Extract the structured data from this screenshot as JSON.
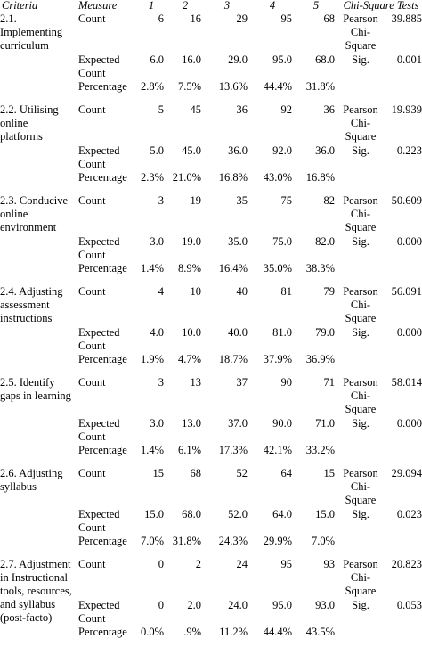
{
  "header": {
    "criteria": "Criteria",
    "measure": "Measure",
    "levels": [
      "1",
      "2",
      "3",
      "4",
      "5"
    ],
    "chi_square": "Chi-Square Tests"
  },
  "groups": [
    {
      "criteria": "2.1. Implementing curriculum",
      "rows": [
        {
          "measure": "Count",
          "values": [
            "6",
            "16",
            "29",
            "95",
            "68"
          ],
          "test_label": "Pearson Chi-Square",
          "test_value": "39.885"
        },
        {
          "measure": "Expected Count",
          "values": [
            "6.0",
            "16.0",
            "29.0",
            "95.0",
            "68.0"
          ],
          "test_label": "Sig.",
          "test_value": "0.001"
        },
        {
          "measure": "Percentage",
          "values": [
            "2.8%",
            "7.5%",
            "13.6%",
            "44.4%",
            "31.8%"
          ]
        }
      ]
    },
    {
      "criteria": "2.2. Utilising online platforms",
      "rows": [
        {
          "measure": "Count",
          "values": [
            "5",
            "45",
            "36",
            "92",
            "36"
          ],
          "test_label": "Pearson Chi-Square",
          "test_value": "19.939"
        },
        {
          "measure": "Expected Count",
          "values": [
            "5.0",
            "45.0",
            "36.0",
            "92.0",
            "36.0"
          ],
          "test_label": "Sig.",
          "test_value": "0.223"
        },
        {
          "measure": "Percentage",
          "values": [
            "2.3%",
            "21.0%",
            "16.8%",
            "43.0%",
            "16.8%"
          ]
        }
      ]
    },
    {
      "criteria": "2.3. Conducive online environment",
      "rows": [
        {
          "measure": "Count",
          "values": [
            "3",
            "19",
            "35",
            "75",
            "82"
          ],
          "test_label": "Pearson Chi-Square",
          "test_value": "50.609"
        },
        {
          "measure": "Expected Count",
          "values": [
            "3.0",
            "19.0",
            "35.0",
            "75.0",
            "82.0"
          ],
          "test_label": "Sig.",
          "test_value": "0.000"
        },
        {
          "measure": "Percentage",
          "values": [
            "1.4%",
            "8.9%",
            "16.4%",
            "35.0%",
            "38.3%"
          ]
        }
      ]
    },
    {
      "criteria": "2.4. Adjusting assessment instructions",
      "rows": [
        {
          "measure": "Count",
          "values": [
            "4",
            "10",
            "40",
            "81",
            "79"
          ],
          "test_label": "Pearson Chi-Square",
          "test_value": "56.091"
        },
        {
          "measure": "Expected Count",
          "values": [
            "4.0",
            "10.0",
            "40.0",
            "81.0",
            "79.0"
          ],
          "test_label": "Sig.",
          "test_value": "0.000"
        },
        {
          "measure": "Percentage",
          "values": [
            "1.9%",
            "4.7%",
            "18.7%",
            "37.9%",
            "36.9%"
          ]
        }
      ]
    },
    {
      "criteria": "2.5. Identify gaps in learning",
      "rows": [
        {
          "measure": "Count",
          "values": [
            "3",
            "13",
            "37",
            "90",
            "71"
          ],
          "test_label": "Pearson Chi-Square",
          "test_value": "58.014"
        },
        {
          "measure": "Expected Count",
          "values": [
            "3.0",
            "13.0",
            "37.0",
            "90.0",
            "71.0"
          ],
          "test_label": "Sig.",
          "test_value": "0.000"
        },
        {
          "measure": "Percentage",
          "values": [
            "1.4%",
            "6.1%",
            "17.3%",
            "42.1%",
            "33.2%"
          ]
        }
      ]
    },
    {
      "criteria": "2.6. Adjusting syllabus",
      "rows": [
        {
          "measure": "Count",
          "values": [
            "15",
            "68",
            "52",
            "64",
            "15"
          ],
          "test_label": "Pearson Chi-Square",
          "test_value": "29.094"
        },
        {
          "measure": "Expected Count",
          "values": [
            "15.0",
            "68.0",
            "52.0",
            "64.0",
            "15.0"
          ],
          "test_label": "Sig.",
          "test_value": "0.023"
        },
        {
          "measure": "Percentage",
          "values": [
            "7.0%",
            "31.8%",
            "24.3%",
            "29.9%",
            "7.0%"
          ]
        }
      ]
    },
    {
      "criteria": "2.7. Adjustment in Instructional tools, resources, and syllabus (post-facto)",
      "rows": [
        {
          "measure": "Count",
          "values": [
            "0",
            "2",
            "24",
            "95",
            "93"
          ],
          "test_label": "Pearson Chi-Square",
          "test_value": "20.823"
        },
        {
          "measure": "Expected Count",
          "values": [
            "0",
            "2.0",
            "24.0",
            "95.0",
            "93.0"
          ],
          "test_label": "Sig.",
          "test_value": "0.053"
        },
        {
          "measure": "Percentage",
          "values": [
            "0.0%",
            ".9%",
            "11.2%",
            "44.4%",
            "43.5%"
          ]
        }
      ]
    }
  ]
}
